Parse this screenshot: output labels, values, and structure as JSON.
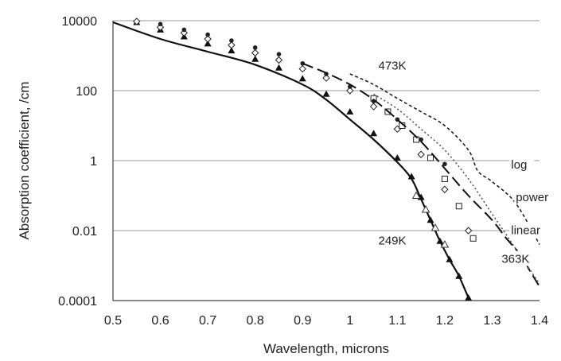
{
  "chart_data": {
    "type": "line",
    "title": "",
    "xlabel": "Wavelength, microns",
    "ylabel": "Absorption coefficient, /cm",
    "xlim": [
      0.5,
      1.4
    ],
    "ylim": [
      0.0001,
      10000
    ],
    "yscale": "log",
    "grid": "horizontal",
    "legend": "none",
    "x_ticks": [
      0.5,
      0.6,
      0.7,
      0.8,
      0.9,
      1.0,
      1.1,
      1.2,
      1.3,
      1.4
    ],
    "x_tick_labels": [
      "0.5",
      "0.6",
      "0.7",
      "0.8",
      "0.9",
      "1",
      "1.1",
      "1.2",
      "1.3",
      "1.4"
    ],
    "y_ticks": [
      0.0001,
      0.01,
      1,
      100,
      10000
    ],
    "y_tick_labels": [
      "0.0001",
      "0.01",
      "1",
      "100",
      "10000"
    ],
    "series": [
      {
        "style": "solid",
        "x": [
          0.5,
          0.6,
          0.7,
          0.8,
          0.9,
          0.95,
          1.0,
          1.05,
          1.1,
          1.13,
          1.15,
          1.17,
          1.19,
          1.21,
          1.23,
          1.25
        ],
        "y": [
          9000,
          3000,
          1300,
          550,
          150,
          55,
          15,
          4,
          0.9,
          0.3,
          0.08,
          0.02,
          0.005,
          0.0015,
          0.0005,
          0.00012
        ]
      },
      {
        "style": "triangle-markers",
        "x": [
          0.55,
          0.6,
          0.65,
          0.7,
          0.75,
          0.8,
          0.85,
          0.9,
          0.95,
          1.0,
          1.05,
          1.1,
          1.13,
          1.15,
          1.17,
          1.19,
          1.21,
          1.23,
          1.25
        ],
        "y": [
          9000,
          5500,
          3500,
          2200,
          1400,
          800,
          450,
          220,
          80,
          25,
          6,
          1.2,
          0.35,
          0.09,
          0.02,
          0.005,
          0.0015,
          0.0005,
          0.00012
        ]
      },
      {
        "style": "open-triangle-markers",
        "x": [
          1.14,
          1.16,
          1.18,
          1.2
        ],
        "y": [
          0.1,
          0.04,
          0.012,
          0.004
        ]
      },
      {
        "style": "diamond-markers",
        "x": [
          0.55,
          0.6,
          0.65,
          0.7,
          0.75,
          0.8,
          0.85,
          0.9,
          0.95,
          1.0,
          1.05,
          1.1,
          1.15,
          1.2,
          1.25
        ],
        "y": [
          9500,
          6500,
          4500,
          3000,
          2000,
          1200,
          750,
          420,
          230,
          100,
          35,
          8,
          1.5,
          0.15,
          0.01
        ]
      },
      {
        "style": "open-square-markers",
        "x": [
          1.05,
          1.08,
          1.11,
          1.14,
          1.17,
          1.2,
          1.23,
          1.26
        ],
        "y": [
          60,
          25,
          10,
          4,
          1.2,
          0.3,
          0.05,
          0.006
        ]
      },
      {
        "style": "circle-markers",
        "x": [
          0.6,
          0.65,
          0.7,
          0.75,
          0.8,
          0.85,
          0.9,
          0.95,
          1.0,
          1.05,
          1.1,
          1.15,
          1.2
        ],
        "y": [
          8000,
          5500,
          4000,
          2700,
          1700,
          1100,
          600,
          300,
          130,
          50,
          15,
          4,
          0.8
        ]
      },
      {
        "style": "long-dash",
        "x": [
          0.9,
          0.95,
          1.0,
          1.05,
          1.1,
          1.15,
          1.2,
          1.25,
          1.3,
          1.33,
          1.36,
          1.38,
          1.4
        ],
        "y": [
          600,
          320,
          150,
          55,
          15,
          3.5,
          0.6,
          0.1,
          0.02,
          0.006,
          0.002,
          0.0007,
          0.00025
        ]
      },
      {
        "style": "dotted",
        "x": [
          1.05,
          1.1,
          1.15,
          1.2,
          1.25,
          1.3,
          1.35,
          1.4
        ],
        "y": [
          80,
          30,
          8,
          2,
          0.3,
          0.03,
          0.003,
          0.0003
        ]
      },
      {
        "style": "short-dash",
        "x": [
          1.0,
          1.05,
          1.1,
          1.15,
          1.2,
          1.25,
          1.27,
          1.3,
          1.35,
          1.4
        ],
        "y": [
          300,
          150,
          60,
          25,
          10,
          2,
          0.5,
          0.25,
          0.06,
          0.004
        ]
      }
    ],
    "annotations": [
      {
        "text": "473K",
        "x": 1.06,
        "y": 400
      },
      {
        "text": "log",
        "x": 1.34,
        "y": 0.6
      },
      {
        "text": "power",
        "x": 1.35,
        "y": 0.07
      },
      {
        "text": "linear",
        "x": 1.34,
        "y": 0.008
      },
      {
        "text": "363K",
        "x": 1.32,
        "y": 0.0012
      },
      {
        "text": "249K",
        "x": 1.06,
        "y": 0.004
      }
    ]
  }
}
